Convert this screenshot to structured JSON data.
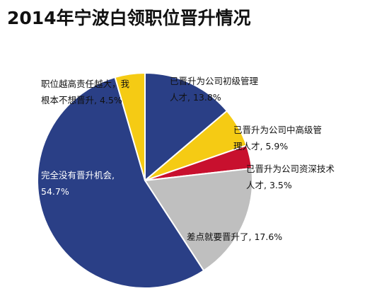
{
  "chart_data": {
    "type": "pie",
    "title": "2014年宁波白领职位晋升情况",
    "slices": [
      {
        "label_lines": [
          "已晋升为公司初级管理",
          "人才, 13.8%"
        ],
        "category": "已晋升为公司初级管理人才",
        "value": 13.8,
        "color": "#2a3f86",
        "label_color": "#111111"
      },
      {
        "label_lines": [
          "已晋升为公司中高级管",
          "理人才, 5.9%"
        ],
        "category": "已晋升为公司中高级管理人才",
        "value": 5.9,
        "color": "#f5cb14",
        "label_color": "#111111"
      },
      {
        "label_lines": [
          "已晋升为公司资深技术",
          "人才, 3.5%"
        ],
        "category": "已晋升为公司资深技术人才",
        "value": 3.5,
        "color": "#c8102e",
        "label_color": "#111111"
      },
      {
        "label_lines": [
          "差点就要晋升了, 17.6%"
        ],
        "category": "差点就要晋升了",
        "value": 17.6,
        "color": "#bfbfbf",
        "label_color": "#111111"
      },
      {
        "label_lines": [
          "完全没有晋升机会,",
          "54.7%"
        ],
        "category": "完全没有晋升机会",
        "value": 54.7,
        "color": "#2a3f86",
        "label_color": "#ffffff"
      },
      {
        "label_lines": [
          "职位越高责任越大，我",
          "根本不想晋升, 4.5%"
        ],
        "category": "职位越高责任越大，我根本不想晋升",
        "value": 4.5,
        "color": "#f5cb14",
        "label_color": "#111111"
      }
    ],
    "start": "12 o'clock",
    "direction": "clockwise",
    "slice_border_color": "#ffffff"
  }
}
